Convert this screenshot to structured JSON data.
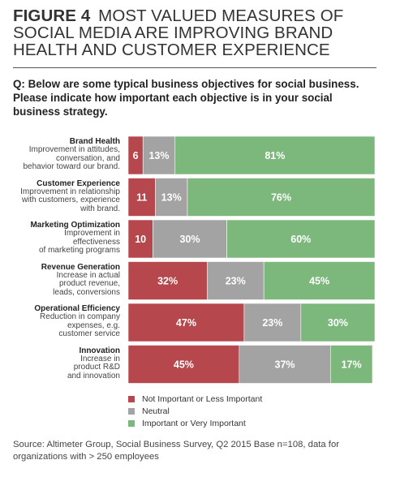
{
  "figure": {
    "label": "FIGURE 4",
    "title_lines": [
      "MOST VALUED MEASURES OF",
      "SOCIAL MEDIA ARE IMPROVING BRAND",
      "HEALTH AND CUSTOMER EXPERIENCE"
    ]
  },
  "question_lines": [
    "Q: Below are some typical business objectives for social business.",
    "Please indicate how important each objective is in your social",
    "business strategy."
  ],
  "chart_data": {
    "type": "bar",
    "orientation": "horizontal",
    "stacked": true,
    "categories": [
      {
        "name": "Brand Health",
        "description_lines": [
          "Improvement in attitudes,",
          "conversation, and",
          "behavior toward our brand."
        ]
      },
      {
        "name": "Customer Experience",
        "description_lines": [
          "Improvement in relationship",
          "with customers, experience",
          "with brand."
        ]
      },
      {
        "name": "Marketing Optimization",
        "description_lines": [
          "Improvement in",
          "effectiveness",
          "of marketing programs"
        ]
      },
      {
        "name": "Revenue Generation",
        "description_lines": [
          "Increase in actual",
          "product revenue,",
          "leads, conversions"
        ]
      },
      {
        "name": "Operational Efficiency",
        "description_lines": [
          "Reduction in company",
          "expenses, e.g.",
          "customer service"
        ]
      },
      {
        "name": "Innovation",
        "description_lines": [
          "Increase in",
          "product R&D",
          "and innovation"
        ]
      }
    ],
    "series": [
      {
        "name": "Not Important or Less Important",
        "color": "#b5474d",
        "values": [
          6,
          11,
          10,
          32,
          47,
          45
        ],
        "labels": [
          "6",
          "11",
          "10",
          "32%",
          "47%",
          "45%"
        ]
      },
      {
        "name": "Neutral",
        "color": "#a3a3a3",
        "values": [
          13,
          13,
          30,
          23,
          23,
          37
        ],
        "labels": [
          "13%",
          "13%",
          "30%",
          "23%",
          "23%",
          "37%"
        ]
      },
      {
        "name": "Important or Very Important",
        "color": "#7cb77c",
        "values": [
          81,
          76,
          60,
          45,
          30,
          17
        ],
        "labels": [
          "81%",
          "76%",
          "60%",
          "45%",
          "30%",
          "17%"
        ]
      }
    ],
    "xlim": [
      0,
      100
    ],
    "grid": false,
    "legend_position": "bottom-left"
  },
  "source_lines": [
    "Source: Altimeter Group, Social Business Survey, Q2 2015 Base n=108, data for",
    "organizations with > 250 employees"
  ]
}
